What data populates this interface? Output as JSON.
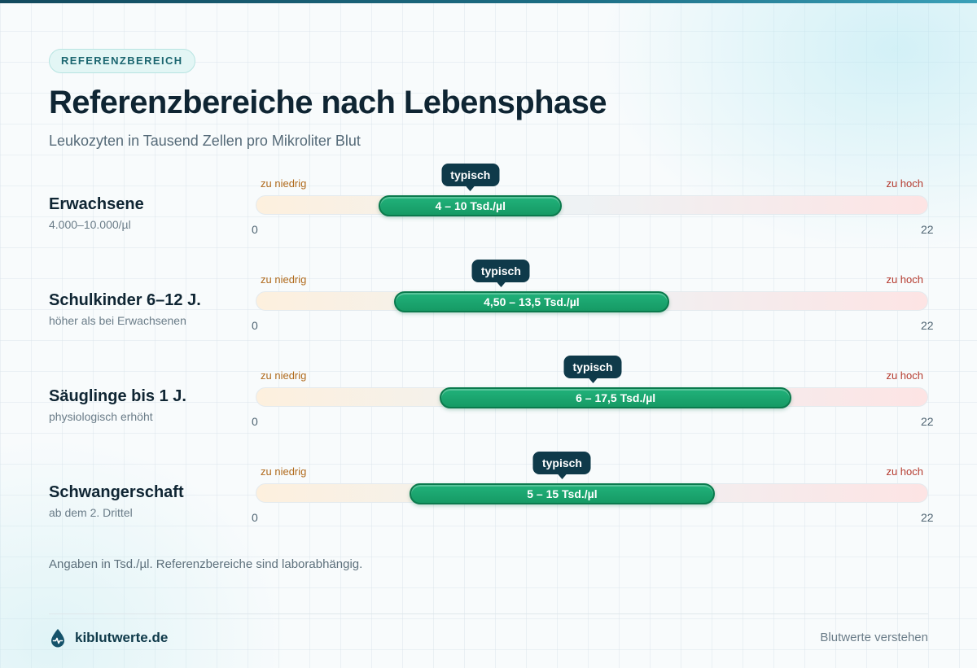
{
  "header": {
    "badge": "REFERENZBEREICH",
    "title": "Referenzbereiche nach Lebensphase",
    "subtitle": "Leukozyten in Tausend Zellen pro Mikroliter Blut"
  },
  "chart_data": {
    "type": "range-bar",
    "title": "Referenzbereiche nach Lebensphase",
    "subtitle": "Leukozyten in Tausend Zellen pro Mikroliter Blut",
    "xlim": [
      0,
      22
    ],
    "tick_min": "0",
    "tick_max": "22",
    "zone_low_label": "zu niedrig",
    "zone_high_label": "zu hoch",
    "marker_label": "typisch",
    "rows": [
      {
        "label": "Erwachsene",
        "sublabel": "4.000–10.000/µl",
        "min": 4,
        "max": 10,
        "typical": 7,
        "range_text": "4 – 10 Tsd./µl"
      },
      {
        "label": "Schulkinder 6–12 J.",
        "sublabel": "höher als bei Erwachsenen",
        "min": 4.5,
        "max": 13.5,
        "typical": 8,
        "range_text": "4,50 – 13,5 Tsd./µl"
      },
      {
        "label": "Säuglinge bis 1 J.",
        "sublabel": "physiologisch erhöht",
        "min": 6,
        "max": 17.5,
        "typical": 11,
        "range_text": "6 – 17,5 Tsd./µl"
      },
      {
        "label": "Schwangerschaft",
        "sublabel": "ab dem 2. Drittel",
        "min": 5,
        "max": 15,
        "typical": 10,
        "range_text": "5 – 15 Tsd./µl"
      }
    ],
    "colors": {
      "range": "#169a65",
      "marker": "#0f3a4a",
      "low_zone": "#b06a1c",
      "high_zone": "#b53a2e"
    }
  },
  "footer": {
    "note": "Angaben in Tsd./µl. Referenzbereiche sind laborabhängig.",
    "brand": "kiblutwerte.de",
    "brand_icon": "blood-drop-icon",
    "tagline": "Blutwerte verstehen"
  }
}
